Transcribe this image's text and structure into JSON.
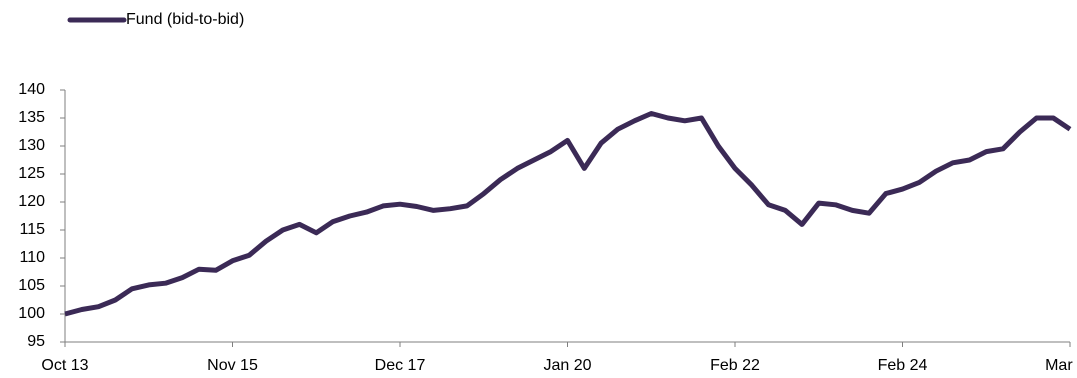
{
  "chart_data": {
    "type": "line",
    "categories": [
      "Oct 13",
      null,
      null,
      null,
      null,
      null,
      null,
      null,
      null,
      null,
      "Nov 15",
      null,
      null,
      null,
      null,
      null,
      null,
      null,
      null,
      null,
      "Dec 17",
      null,
      null,
      null,
      null,
      null,
      null,
      null,
      null,
      null,
      "Jan 20",
      null,
      null,
      null,
      null,
      null,
      null,
      null,
      null,
      null,
      "Feb 22",
      null,
      null,
      null,
      null,
      null,
      null,
      null,
      null,
      null,
      "Feb 24",
      null,
      null,
      null,
      null,
      null,
      null,
      null,
      null,
      null,
      "Mar 26"
    ],
    "series": [
      {
        "name": "Fund (bid-to-bid)",
        "color": "#3b2a56",
        "values": [
          100,
          100.8,
          101.3,
          102.5,
          104.5,
          105.2,
          105.5,
          106.5,
          108,
          107.8,
          109.5,
          110.5,
          113,
          115,
          116,
          114.5,
          116.5,
          117.5,
          118.2,
          119.3,
          119.6,
          119.2,
          118.5,
          118.8,
          119.3,
          121.5,
          124,
          126,
          127.5,
          129,
          131,
          126,
          130.5,
          133,
          134.5,
          135.8,
          135,
          134.5,
          135,
          130,
          126,
          123,
          119.5,
          118.5,
          116,
          119.8,
          119.5,
          118.5,
          118,
          121.5,
          122.3,
          123.5,
          125.5,
          127,
          127.5,
          129,
          129.5,
          132.5,
          135,
          135,
          133
        ]
      }
    ],
    "ylim": [
      95,
      140
    ],
    "yticks": [
      95,
      100,
      105,
      110,
      115,
      120,
      125,
      130,
      135,
      140
    ],
    "grid": false,
    "legend": "top-left"
  }
}
